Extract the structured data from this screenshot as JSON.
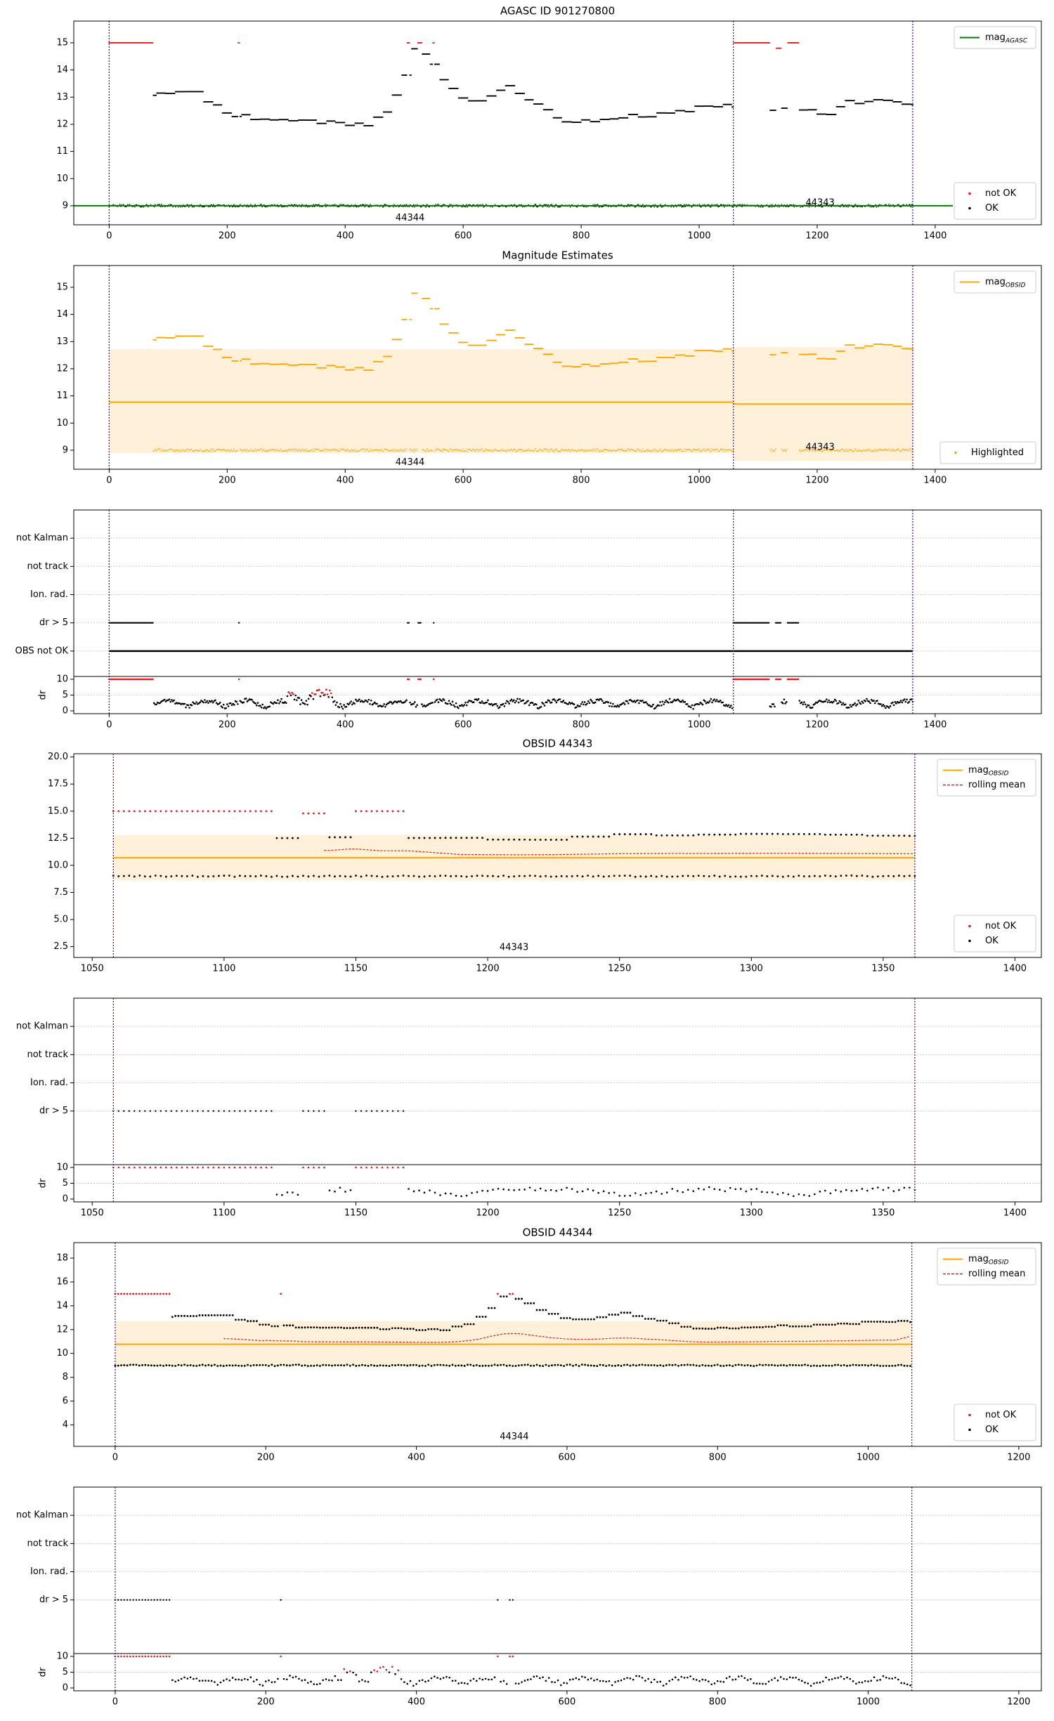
{
  "colors": {
    "ok": "#000000",
    "not_ok": "#e41a1c",
    "agasc": "#008000",
    "obsid": "#ffa500",
    "band": "#fdebcc",
    "vline": "#5500aa",
    "grid": "#cccccc"
  },
  "chart_data": [
    {
      "type": "scatter",
      "title": "AGASC ID 901270800",
      "xlim": [
        -60,
        1580
      ],
      "ylim": [
        8.3,
        15.8
      ],
      "xticks": [
        0,
        200,
        400,
        600,
        800,
        1000,
        1200,
        1400
      ],
      "yticks": [
        9,
        10,
        11,
        12,
        13,
        14,
        15
      ],
      "vlines": [
        0,
        1058,
        1362
      ],
      "obsid_labels": [
        {
          "x": 510,
          "y": 8.55,
          "text": "44344"
        },
        {
          "x": 1205,
          "y": 9.1,
          "text": "44343"
        }
      ],
      "legends": [
        {
          "pos": "top-right",
          "entries": [
            {
              "kind": "line",
              "color": "#008000",
              "label": "mag",
              "sub": "AGASC"
            }
          ]
        },
        {
          "pos": "bottom-right",
          "entries": [
            {
              "kind": "dot",
              "color": "#e41a1c",
              "label": "not OK"
            },
            {
              "kind": "dot",
              "color": "#000000",
              "label": "OK"
            }
          ]
        }
      ],
      "series": [
        {
          "name": "mag_aca",
          "x0": 0,
          "x1": 1362,
          "mag": "full"
        },
        {
          "name": "mag_aca_err",
          "x0": 0,
          "x1": 1362,
          "const": 9.0
        },
        {
          "name": "mag_agasc",
          "line": true,
          "x0": -60,
          "x1": 1430,
          "const": 9.0
        }
      ]
    },
    {
      "type": "scatter",
      "title": "Magnitude Estimates",
      "xlim": [
        -60,
        1580
      ],
      "ylim": [
        8.3,
        15.8
      ],
      "xticks": [
        0,
        200,
        400,
        600,
        800,
        1000,
        1200,
        1400
      ],
      "yticks": [
        9,
        10,
        11,
        12,
        13,
        14,
        15
      ],
      "vlines": [
        0,
        1058,
        1362
      ],
      "obsid_labels": [
        {
          "x": 510,
          "y": 8.55,
          "text": "44344"
        },
        {
          "x": 1205,
          "y": 9.1,
          "text": "44343"
        }
      ],
      "legends": [
        {
          "pos": "top-right",
          "entries": [
            {
              "kind": "line",
              "color": "#ffa500",
              "label": "mag",
              "sub": "OBSID"
            }
          ]
        },
        {
          "pos": "bottom-right",
          "entries": [
            {
              "kind": "dot",
              "color": "#ffa500",
              "label": "Highlighted"
            }
          ]
        }
      ],
      "obsid_mags": [
        {
          "x0": 0,
          "x1": 1058,
          "mag": 10.77,
          "lo": 8.9,
          "hi": 12.72
        },
        {
          "x0": 1058,
          "x1": 1362,
          "mag": 10.7,
          "lo": 8.6,
          "hi": 12.8
        }
      ]
    },
    {
      "type": "flags",
      "xlim": [
        -60,
        1580
      ],
      "xticks": [
        0,
        200,
        400,
        600,
        800,
        1000,
        1200,
        1400
      ],
      "flag_labels": [
        "not Kalman",
        "not track",
        "Ion. rad.",
        "dr > 5",
        "OBS not OK"
      ],
      "dr_label": "dr",
      "dr_yticks": [
        0,
        5,
        10
      ],
      "vlines": [
        0,
        1058,
        1362
      ],
      "x0": 0,
      "x1": 1362,
      "obs_not_ok": true
    },
    {
      "type": "scatter",
      "title": "OBSID 44343",
      "xlim": [
        1043,
        1410
      ],
      "ylim": [
        1.5,
        20.3
      ],
      "xticks": [
        1050,
        1100,
        1150,
        1200,
        1250,
        1300,
        1350,
        1400
      ],
      "yticks": [
        2.5,
        5.0,
        7.5,
        10.0,
        12.5,
        15.0,
        17.5,
        20.0
      ],
      "vlines": [
        1058,
        1362
      ],
      "obsid_labels": [
        {
          "x": 1210,
          "y": 2.4,
          "text": "44343"
        }
      ],
      "legends": [
        {
          "pos": "top-right",
          "entries": [
            {
              "kind": "line",
              "color": "#ffa500",
              "label": "mag",
              "sub": "OBSID"
            },
            {
              "kind": "dash",
              "color": "#e41a1c",
              "label": "rolling mean"
            }
          ]
        },
        {
          "pos": "bottom-right",
          "entries": [
            {
              "kind": "dot",
              "color": "#e41a1c",
              "label": "not OK"
            },
            {
              "kind": "dot",
              "color": "#000000",
              "label": "OK"
            }
          ]
        }
      ],
      "x0": 1058,
      "x1": 1362,
      "step": 2,
      "obsid_mag": 10.7,
      "band": [
        8.6,
        12.8
      ]
    },
    {
      "type": "flags",
      "xlim": [
        1043,
        1410
      ],
      "xticks": [
        1050,
        1100,
        1150,
        1200,
        1250,
        1300,
        1350,
        1400
      ],
      "flag_labels": [
        "not Kalman",
        "not track",
        "Ion. rad.",
        "dr > 5"
      ],
      "dr_label": "dr",
      "dr_yticks": [
        0,
        5,
        10
      ],
      "vlines": [
        1058,
        1362
      ],
      "x0": 1058,
      "x1": 1362,
      "step": 2
    },
    {
      "type": "scatter",
      "title": "OBSID 44344",
      "xlim": [
        -55,
        1230
      ],
      "ylim": [
        2.2,
        19.3
      ],
      "xticks": [
        0,
        200,
        400,
        600,
        800,
        1000,
        1200
      ],
      "yticks": [
        4,
        6,
        8,
        10,
        12,
        14,
        16,
        18
      ],
      "vlines": [
        0,
        1058
      ],
      "obsid_labels": [
        {
          "x": 530,
          "y": 3.0,
          "text": "44344"
        }
      ],
      "legends": [
        {
          "pos": "top-right",
          "entries": [
            {
              "kind": "line",
              "color": "#ffa500",
              "label": "mag",
              "sub": "OBSID"
            },
            {
              "kind": "dash",
              "color": "#e41a1c",
              "label": "rolling mean"
            }
          ]
        },
        {
          "pos": "bottom-right",
          "entries": [
            {
              "kind": "dot",
              "color": "#e41a1c",
              "label": "not OK"
            },
            {
              "kind": "dot",
              "color": "#000000",
              "label": "OK"
            }
          ]
        }
      ],
      "x0": 0,
      "x1": 1058,
      "step": 4,
      "obsid_mag": 10.77,
      "band": [
        8.9,
        12.72
      ]
    },
    {
      "type": "flags",
      "xlim": [
        -55,
        1230
      ],
      "xticks": [
        0,
        200,
        400,
        600,
        800,
        1000,
        1200
      ],
      "flag_labels": [
        "not Kalman",
        "not track",
        "Ion. rad.",
        "dr > 5"
      ],
      "dr_label": "dr",
      "dr_yticks": [
        0,
        5,
        10
      ],
      "vlines": [
        0,
        1058
      ],
      "x0": 0,
      "x1": 1058,
      "step": 4
    }
  ]
}
